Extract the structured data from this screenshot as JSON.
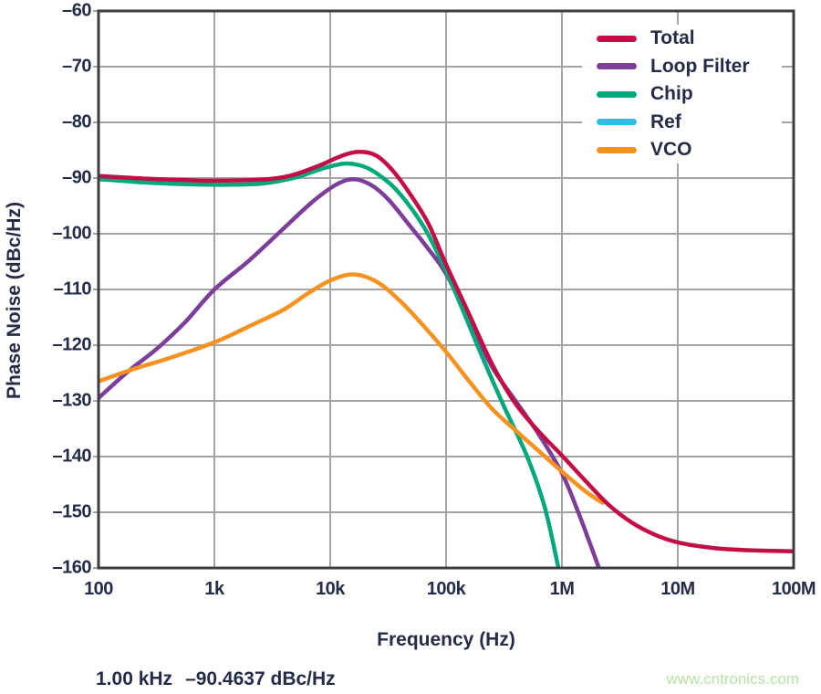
{
  "page": {
    "background": "#ffffff"
  },
  "axes": {
    "x_title": "Frequency (Hz)",
    "y_title": "Phase Noise (dBc/Hz)"
  },
  "annotation": {
    "marker_freq": "1.00 kHz",
    "marker_value": "–90.4637 dBc/Hz"
  },
  "watermark": {
    "text": "www.cntronics.com",
    "color": "#B4E3A6"
  },
  "style": {
    "ink_color": "#242C47",
    "grid_color": "#A4A4A6",
    "frame_color": "#3E3E40",
    "legend_background": "#ffffff"
  },
  "chart_data": {
    "type": "line",
    "title": "",
    "xlabel": "Frequency (Hz)",
    "ylabel": "Phase Noise (dBc/Hz)",
    "x_scale": "log10",
    "xlim_log10": [
      2,
      8
    ],
    "ylim": [
      -160,
      -60
    ],
    "grid": true,
    "legend_position": "top-right",
    "x_ticks": [
      {
        "lg": 2,
        "label": "100"
      },
      {
        "lg": 3,
        "label": "1k"
      },
      {
        "lg": 4,
        "label": "10k"
      },
      {
        "lg": 5,
        "label": "100k"
      },
      {
        "lg": 6,
        "label": "1M"
      },
      {
        "lg": 7,
        "label": "10M"
      },
      {
        "lg": 8,
        "label": "100M"
      }
    ],
    "y_ticks": [
      {
        "value": -60,
        "label": "–60"
      },
      {
        "value": -70,
        "label": "–70"
      },
      {
        "value": -80,
        "label": "–80"
      },
      {
        "value": -90,
        "label": "–90"
      },
      {
        "value": -100,
        "label": "–100"
      },
      {
        "value": -110,
        "label": "–110"
      },
      {
        "value": -120,
        "label": "–120"
      },
      {
        "value": -130,
        "label": "–130"
      },
      {
        "value": -140,
        "label": "–140"
      },
      {
        "value": -150,
        "label": "–150"
      },
      {
        "value": -160,
        "label": "–160"
      }
    ],
    "legend_order": [
      "Total",
      "Loop Filter",
      "Chip",
      "Ref",
      "VCO"
    ],
    "draw_order": [
      "Ref",
      "Loop Filter",
      "Chip",
      "VCO",
      "Total"
    ],
    "series": [
      {
        "name": "Total",
        "color": "#C30E45",
        "points": [
          [
            2.0,
            -89.6
          ],
          [
            2.4,
            -90.1
          ],
          [
            2.8,
            -90.4
          ],
          [
            3.0,
            -90.4637
          ],
          [
            3.4,
            -90.3
          ],
          [
            3.65,
            -89.6
          ],
          [
            3.9,
            -87.8
          ],
          [
            4.1,
            -86.0
          ],
          [
            4.25,
            -85.3
          ],
          [
            4.4,
            -86.0
          ],
          [
            4.55,
            -88.9
          ],
          [
            4.7,
            -93.2
          ],
          [
            4.85,
            -98.3
          ],
          [
            5.0,
            -105.5
          ],
          [
            5.2,
            -114.5
          ],
          [
            5.4,
            -123.5
          ],
          [
            5.6,
            -130.5
          ],
          [
            5.8,
            -135.5
          ],
          [
            6.0,
            -139.8
          ],
          [
            6.2,
            -144.3
          ],
          [
            6.4,
            -148.6
          ],
          [
            6.6,
            -151.8
          ],
          [
            6.8,
            -154.0
          ],
          [
            7.0,
            -155.4
          ],
          [
            7.3,
            -156.4
          ],
          [
            7.6,
            -156.8
          ],
          [
            8.0,
            -157.0
          ]
        ]
      },
      {
        "name": "Loop Filter",
        "color": "#7C3E98",
        "points": [
          [
            2.0,
            -129.5
          ],
          [
            2.25,
            -124.8
          ],
          [
            2.5,
            -120.7
          ],
          [
            2.75,
            -115.8
          ],
          [
            3.0,
            -110.0
          ],
          [
            3.3,
            -104.8
          ],
          [
            3.6,
            -99.0
          ],
          [
            3.85,
            -94.2
          ],
          [
            4.05,
            -91.2
          ],
          [
            4.2,
            -90.2
          ],
          [
            4.35,
            -91.2
          ],
          [
            4.5,
            -93.8
          ],
          [
            4.7,
            -98.9
          ],
          [
            4.85,
            -102.8
          ],
          [
            5.0,
            -107.2
          ],
          [
            5.2,
            -115.5
          ],
          [
            5.4,
            -124.0
          ],
          [
            5.6,
            -130.0
          ],
          [
            5.8,
            -136.0
          ],
          [
            6.0,
            -143.0
          ],
          [
            6.15,
            -150.5
          ],
          [
            6.32,
            -160.0
          ]
        ]
      },
      {
        "name": "Chip",
        "color": "#00A87B",
        "points": [
          [
            2.0,
            -90.2
          ],
          [
            2.5,
            -90.9
          ],
          [
            3.0,
            -91.2
          ],
          [
            3.4,
            -91.0
          ],
          [
            3.7,
            -89.9
          ],
          [
            3.95,
            -88.2
          ],
          [
            4.13,
            -87.4
          ],
          [
            4.3,
            -88.0
          ],
          [
            4.45,
            -89.9
          ],
          [
            4.6,
            -92.8
          ],
          [
            4.8,
            -98.5
          ],
          [
            4.95,
            -104.5
          ],
          [
            5.1,
            -111.5
          ],
          [
            5.3,
            -121.5
          ],
          [
            5.5,
            -131.0
          ],
          [
            5.7,
            -140.0
          ],
          [
            5.85,
            -149.0
          ],
          [
            5.97,
            -160.0
          ]
        ]
      },
      {
        "name": "Ref",
        "color": "#29BDEB",
        "visible_in_plot": false,
        "points": []
      },
      {
        "name": "VCO",
        "color": "#F79120",
        "points": [
          [
            2.0,
            -126.5
          ],
          [
            2.3,
            -124.3
          ],
          [
            2.6,
            -122.4
          ],
          [
            3.0,
            -119.5
          ],
          [
            3.3,
            -116.6
          ],
          [
            3.6,
            -113.6
          ],
          [
            3.8,
            -110.8
          ],
          [
            4.0,
            -108.4
          ],
          [
            4.2,
            -107.3
          ],
          [
            4.4,
            -108.6
          ],
          [
            4.6,
            -112.0
          ],
          [
            4.8,
            -116.4
          ],
          [
            5.0,
            -121.2
          ],
          [
            5.2,
            -126.5
          ],
          [
            5.4,
            -131.5
          ],
          [
            5.6,
            -135.3
          ],
          [
            5.8,
            -139.0
          ],
          [
            6.0,
            -142.7
          ],
          [
            6.2,
            -146.2
          ],
          [
            6.35,
            -148.3
          ]
        ]
      }
    ]
  }
}
